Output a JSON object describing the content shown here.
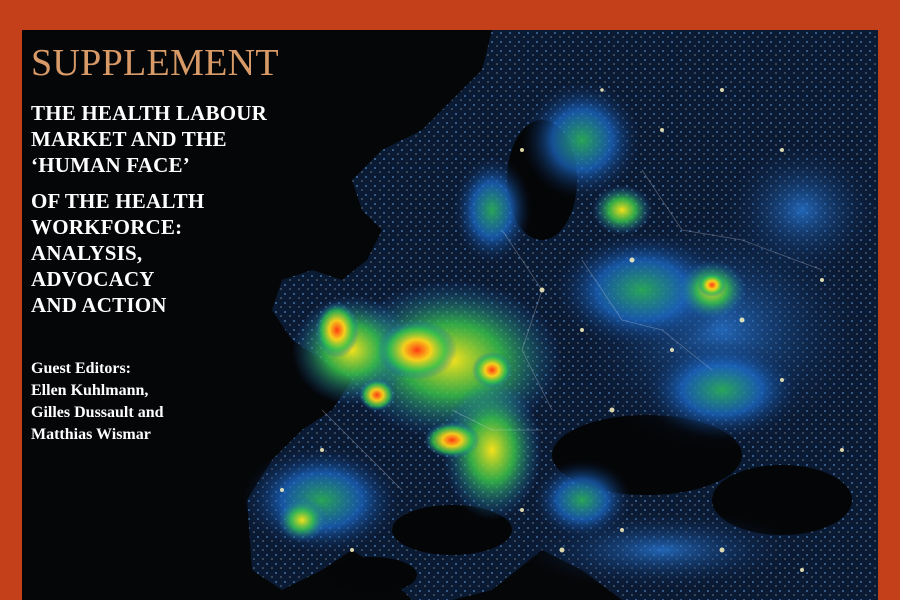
{
  "cover": {
    "supplement_label": "SUPPLEMENT",
    "title_lines_a": [
      "THE HEALTH LABOUR",
      "MARKET AND THE",
      "‘HUMAN FACE’"
    ],
    "title_lines_b": [
      "OF THE HEALTH",
      "WORKFORCE:",
      "ANALYSIS,",
      "ADVOCACY",
      "AND ACTION"
    ],
    "editors_heading": "Guest Editors:",
    "editors": [
      "Ellen Kuhlmann,",
      "Gilles Dussault and",
      "Matthias Wismar"
    ]
  },
  "colors": {
    "frame": "#c4401a",
    "background": "#050608",
    "supplement_text": "#d89a67",
    "title_text": "#ffffff",
    "light_low": "#1f6fd6",
    "light_mid": "#28c25a",
    "light_high": "#f2e21a",
    "light_peak": "#e8401c"
  },
  "map": {
    "subject": "europe-night-light-pollution-map"
  }
}
